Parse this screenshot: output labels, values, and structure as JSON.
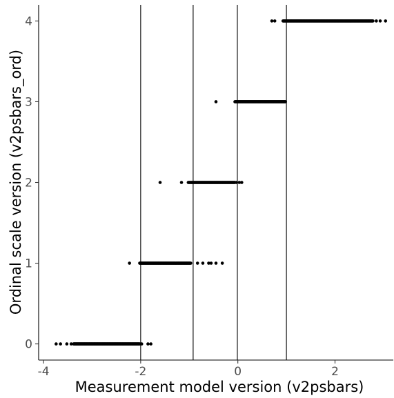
{
  "chart_data": {
    "type": "scatter",
    "title": "",
    "xlabel": "Measurement model version (v2psbars)",
    "ylabel": "Ordinal scale version (v2psbars_ord)",
    "xlim": [
      -4.1,
      3.2
    ],
    "ylim": [
      -0.2,
      4.2
    ],
    "x_ticks": [
      -4,
      -2,
      0,
      2
    ],
    "x_tick_labels": [
      "-4",
      "-2",
      "0",
      "2"
    ],
    "y_ticks": [
      0,
      1,
      2,
      3,
      4
    ],
    "y_tick_labels": [
      "0",
      "1",
      "2",
      "3",
      "4"
    ],
    "grid": false,
    "theme": "classic",
    "point_color": "#000000",
    "line_color": "#000000",
    "vlines": [
      -2.0,
      -0.92,
      -0.01,
      1.0
    ],
    "series": [
      {
        "y": 0,
        "dense_ranges": [
          [
            -3.38,
            -2.02
          ]
        ],
        "points": [
          -3.74,
          -3.65,
          -3.52,
          -3.43,
          -1.98,
          -1.85,
          -1.79
        ]
      },
      {
        "y": 1,
        "dense_ranges": [
          [
            -2.02,
            -0.97
          ]
        ],
        "points": [
          -2.23,
          -0.83,
          -0.72,
          -0.6,
          -0.55,
          -0.45,
          -0.32
        ]
      },
      {
        "y": 2,
        "dense_ranges": [
          [
            -1.02,
            -0.06
          ]
        ],
        "points": [
          -1.6,
          -1.16,
          -0.03,
          0.03,
          0.08
        ]
      },
      {
        "y": 3,
        "dense_ranges": [
          [
            -0.06,
            0.98
          ]
        ],
        "points": [
          -0.45
        ]
      },
      {
        "y": 4,
        "dense_ranges": [
          [
            0.93,
            2.78
          ]
        ],
        "points": [
          0.7,
          0.76,
          2.85,
          2.93,
          3.04
        ]
      }
    ]
  }
}
